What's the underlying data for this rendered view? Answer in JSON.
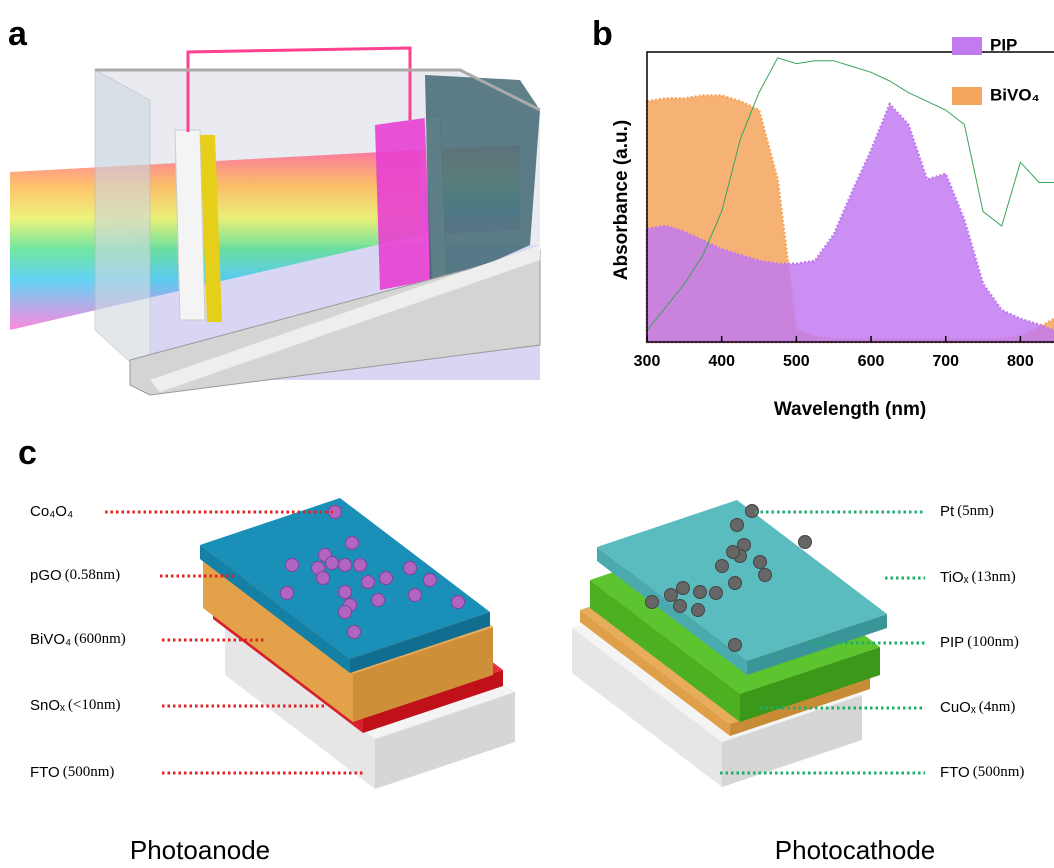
{
  "panels": {
    "a": "a",
    "b": "b",
    "c": "c"
  },
  "chart_data": {
    "type": "area",
    "x_label": "Wavelength (nm)",
    "y_label": "Absorbance (a.u.)",
    "x": [
      300,
      325,
      350,
      375,
      400,
      425,
      450,
      475,
      500,
      525,
      550,
      575,
      600,
      625,
      650,
      675,
      700,
      725,
      750,
      775,
      800,
      825,
      845
    ],
    "series": [
      {
        "name": "BiVO₄",
        "color": "#f5a55c",
        "values": [
          0.83,
          0.84,
          0.84,
          0.85,
          0.85,
          0.83,
          0.8,
          0.56,
          0.04,
          0.02,
          0.01,
          0.01,
          0.01,
          0.01,
          0.01,
          0.01,
          0.01,
          0.01,
          0.01,
          0.01,
          0.02,
          0.05,
          0.08
        ]
      },
      {
        "name": "PIP",
        "color": "#c27af0",
        "values": [
          0.39,
          0.4,
          0.38,
          0.35,
          0.32,
          0.3,
          0.28,
          0.27,
          0.27,
          0.28,
          0.37,
          0.52,
          0.66,
          0.82,
          0.75,
          0.56,
          0.58,
          0.42,
          0.2,
          0.11,
          0.08,
          0.06,
          0.04
        ]
      },
      {
        "color": "#3aa35a",
        "values": [
          0.04,
          0.12,
          0.2,
          0.3,
          0.45,
          0.7,
          0.86,
          0.98,
          0.96,
          0.97,
          0.97,
          0.95,
          0.93,
          0.9,
          0.86,
          0.83,
          0.8,
          0.75,
          0.45,
          0.4,
          0.62,
          0.55,
          0.55
        ]
      }
    ],
    "xlim": [
      300,
      845
    ],
    "ylim": [
      0,
      1
    ],
    "xticks": [
      300,
      400,
      500,
      600,
      700,
      800
    ],
    "legend": "upper right"
  },
  "photoanode": {
    "title": "Photoanode",
    "layers": [
      {
        "name": "Co₄O₄"
      },
      {
        "name": "pGO",
        "thickness": "(0.58nm)"
      },
      {
        "name": "BiVO₄",
        "thickness": "(600nm)"
      },
      {
        "name": "SnOₓ",
        "thickness": "(<10nm)"
      },
      {
        "name": "FTO",
        "thickness": "(500nm)"
      }
    ]
  },
  "photocathode": {
    "title": "Photocathode",
    "layers": [
      {
        "name": "Pt",
        "thickness": "(5nm)"
      },
      {
        "name": "TiOₓ",
        "thickness": "(13nm)"
      },
      {
        "name": "PIP",
        "thickness": "(100nm)"
      },
      {
        "name": "CuOₓ",
        "thickness": "(4nm)"
      },
      {
        "name": "FTO",
        "thickness": "(500nm)"
      }
    ]
  }
}
